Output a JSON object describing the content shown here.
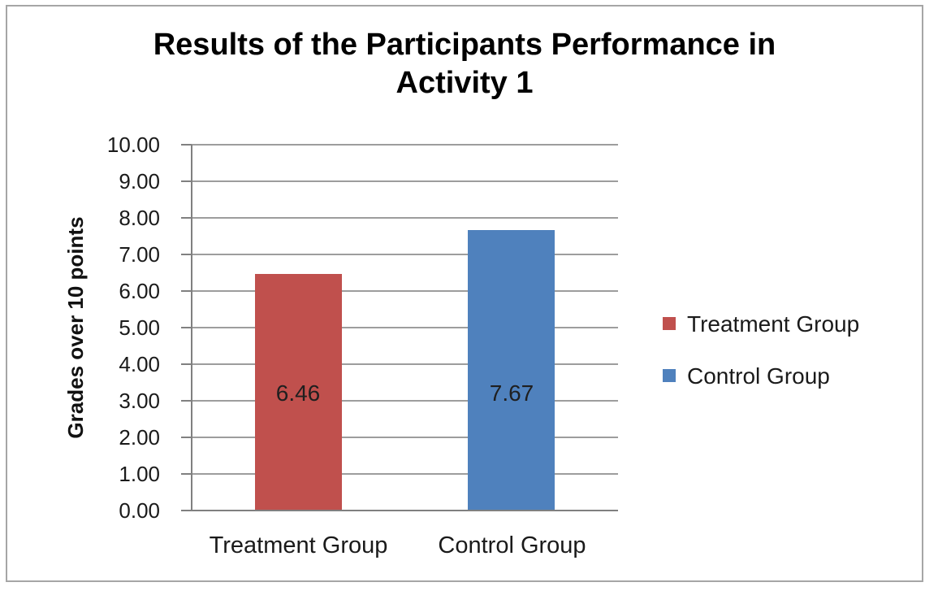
{
  "chart_data": {
    "type": "bar",
    "title": "Results of the Participants Performance in Activity 1",
    "title_lines": [
      "Results of the Participants Performance in",
      "Activity 1"
    ],
    "ylabel": "Grades over 10 points",
    "xlabel": "",
    "categories": [
      "Treatment Group",
      "Control Group"
    ],
    "series": [
      {
        "name": "Treatment Group",
        "value": 6.46,
        "data_label": "6.46",
        "color": "#C0504D"
      },
      {
        "name": "Control Group",
        "value": 7.67,
        "data_label": "7.67",
        "color": "#4F81BD"
      }
    ],
    "ylim": [
      0,
      10
    ],
    "ytick_labels": [
      "10.00",
      "9.00",
      "8.00",
      "7.00",
      "6.00",
      "5.00",
      "4.00",
      "3.00",
      "2.00",
      "1.00",
      "0.00"
    ],
    "grid": true,
    "legend_position": "right",
    "legend": [
      {
        "label": "Treatment Group",
        "color": "#C0504D"
      },
      {
        "label": "Control Group",
        "color": "#4F81BD"
      }
    ]
  },
  "colors": {
    "gridline": "#9d9d9d",
    "axis": "#808080",
    "frame_border": "#a6a6a6",
    "background": "#ffffff",
    "text": "#1a1a1a"
  }
}
